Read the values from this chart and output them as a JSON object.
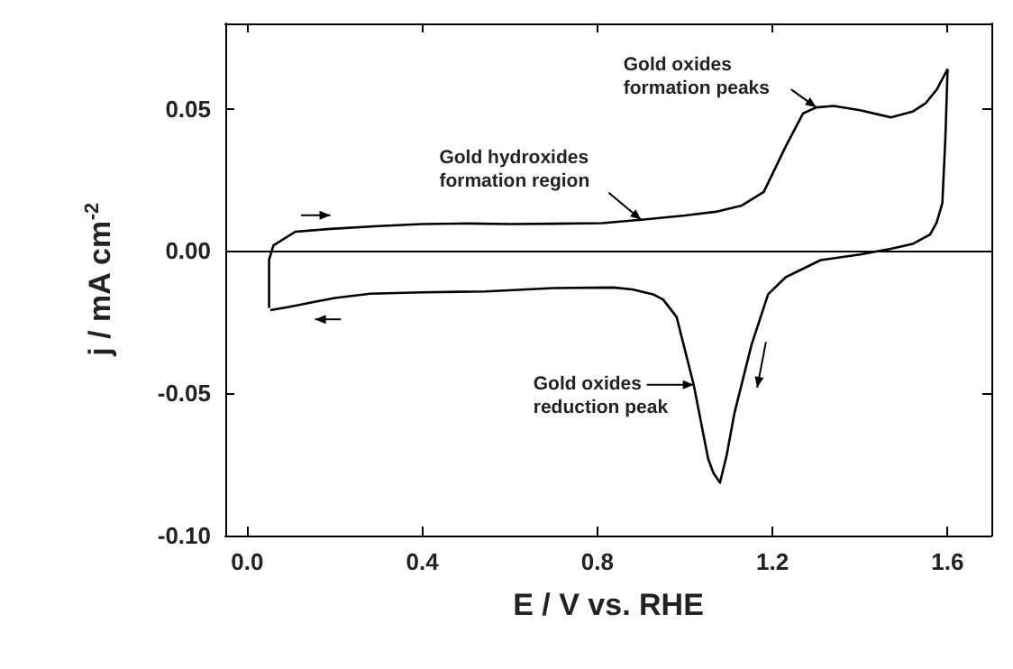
{
  "chart_data": {
    "type": "line",
    "xlabel": "E / V vs. RHE",
    "ylabel": "j / mA cm$^{-2}$",
    "xlim": [
      -0.05,
      1.7
    ],
    "ylim": [
      -0.1,
      0.08
    ],
    "xticks": [
      {
        "value": 0,
        "label": "0.0"
      },
      0.4,
      0.8,
      1.2,
      1.6
    ],
    "yticks": [
      {
        "value": -0.1,
        "label": "-0.10"
      },
      -0.05,
      {
        "value": 0,
        "label": "0.00"
      },
      0.05
    ],
    "grid": false,
    "marker": "none",
    "line_style": "solid",
    "ref_lines": [
      {
        "axis": "y",
        "value": 0,
        "label": null,
        "color": "#000000"
      }
    ],
    "annotations": [
      {
        "text": "Gold oxides\nformation peaks",
        "x": 1.3,
        "y": 0.0505
      },
      {
        "text": "Gold hydroxides\nformation region",
        "x": 0.9,
        "y": 0.011
      },
      {
        "text": "Gold oxides\nreduction peak",
        "x": 1.02,
        "y": -0.047
      }
    ],
    "series": [
      {
        "color": "#000000",
        "x": [
          0.05,
          0.05,
          0.06,
          0.11,
          0.19,
          0.3,
          0.4,
          0.5,
          0.6,
          0.7,
          0.81,
          0.9,
          1.0,
          1.07,
          1.13,
          1.18,
          1.23,
          1.27,
          1.3,
          1.34,
          1.4,
          1.47,
          1.52,
          1.55,
          1.575,
          1.6
        ],
        "values": [
          -0.02,
          -0.003,
          0.002,
          0.0068,
          0.0078,
          0.0088,
          0.0095,
          0.0097,
          0.0095,
          0.0096,
          0.0098,
          0.011,
          0.0125,
          0.0138,
          0.016,
          0.0208,
          0.0367,
          0.0484,
          0.0505,
          0.051,
          0.0495,
          0.047,
          0.049,
          0.052,
          0.0567,
          0.064
        ]
      },
      {
        "color": "#000000",
        "x": [
          0.053,
          0.1,
          0.149,
          0.2,
          0.281,
          0.4,
          0.545,
          0.7,
          0.836,
          0.88,
          0.927,
          0.95,
          0.981,
          1.02,
          1.053,
          1.065,
          1.08,
          1.095,
          1.113,
          1.152,
          1.19,
          1.23,
          1.31,
          1.4,
          1.47,
          1.52,
          1.56,
          1.575,
          1.588,
          1.595,
          1.6
        ],
        "values": [
          -0.0208,
          -0.0195,
          -0.018,
          -0.0165,
          -0.015,
          -0.0145,
          -0.0142,
          -0.013,
          -0.0128,
          -0.0135,
          -0.0152,
          -0.017,
          -0.0232,
          -0.047,
          -0.073,
          -0.078,
          -0.0814,
          -0.072,
          -0.057,
          -0.033,
          -0.0152,
          -0.0092,
          -0.0032,
          -0.0012,
          0.0008,
          0.0025,
          0.0058,
          0.01,
          0.0168,
          0.04,
          0.064
        ]
      }
    ]
  }
}
